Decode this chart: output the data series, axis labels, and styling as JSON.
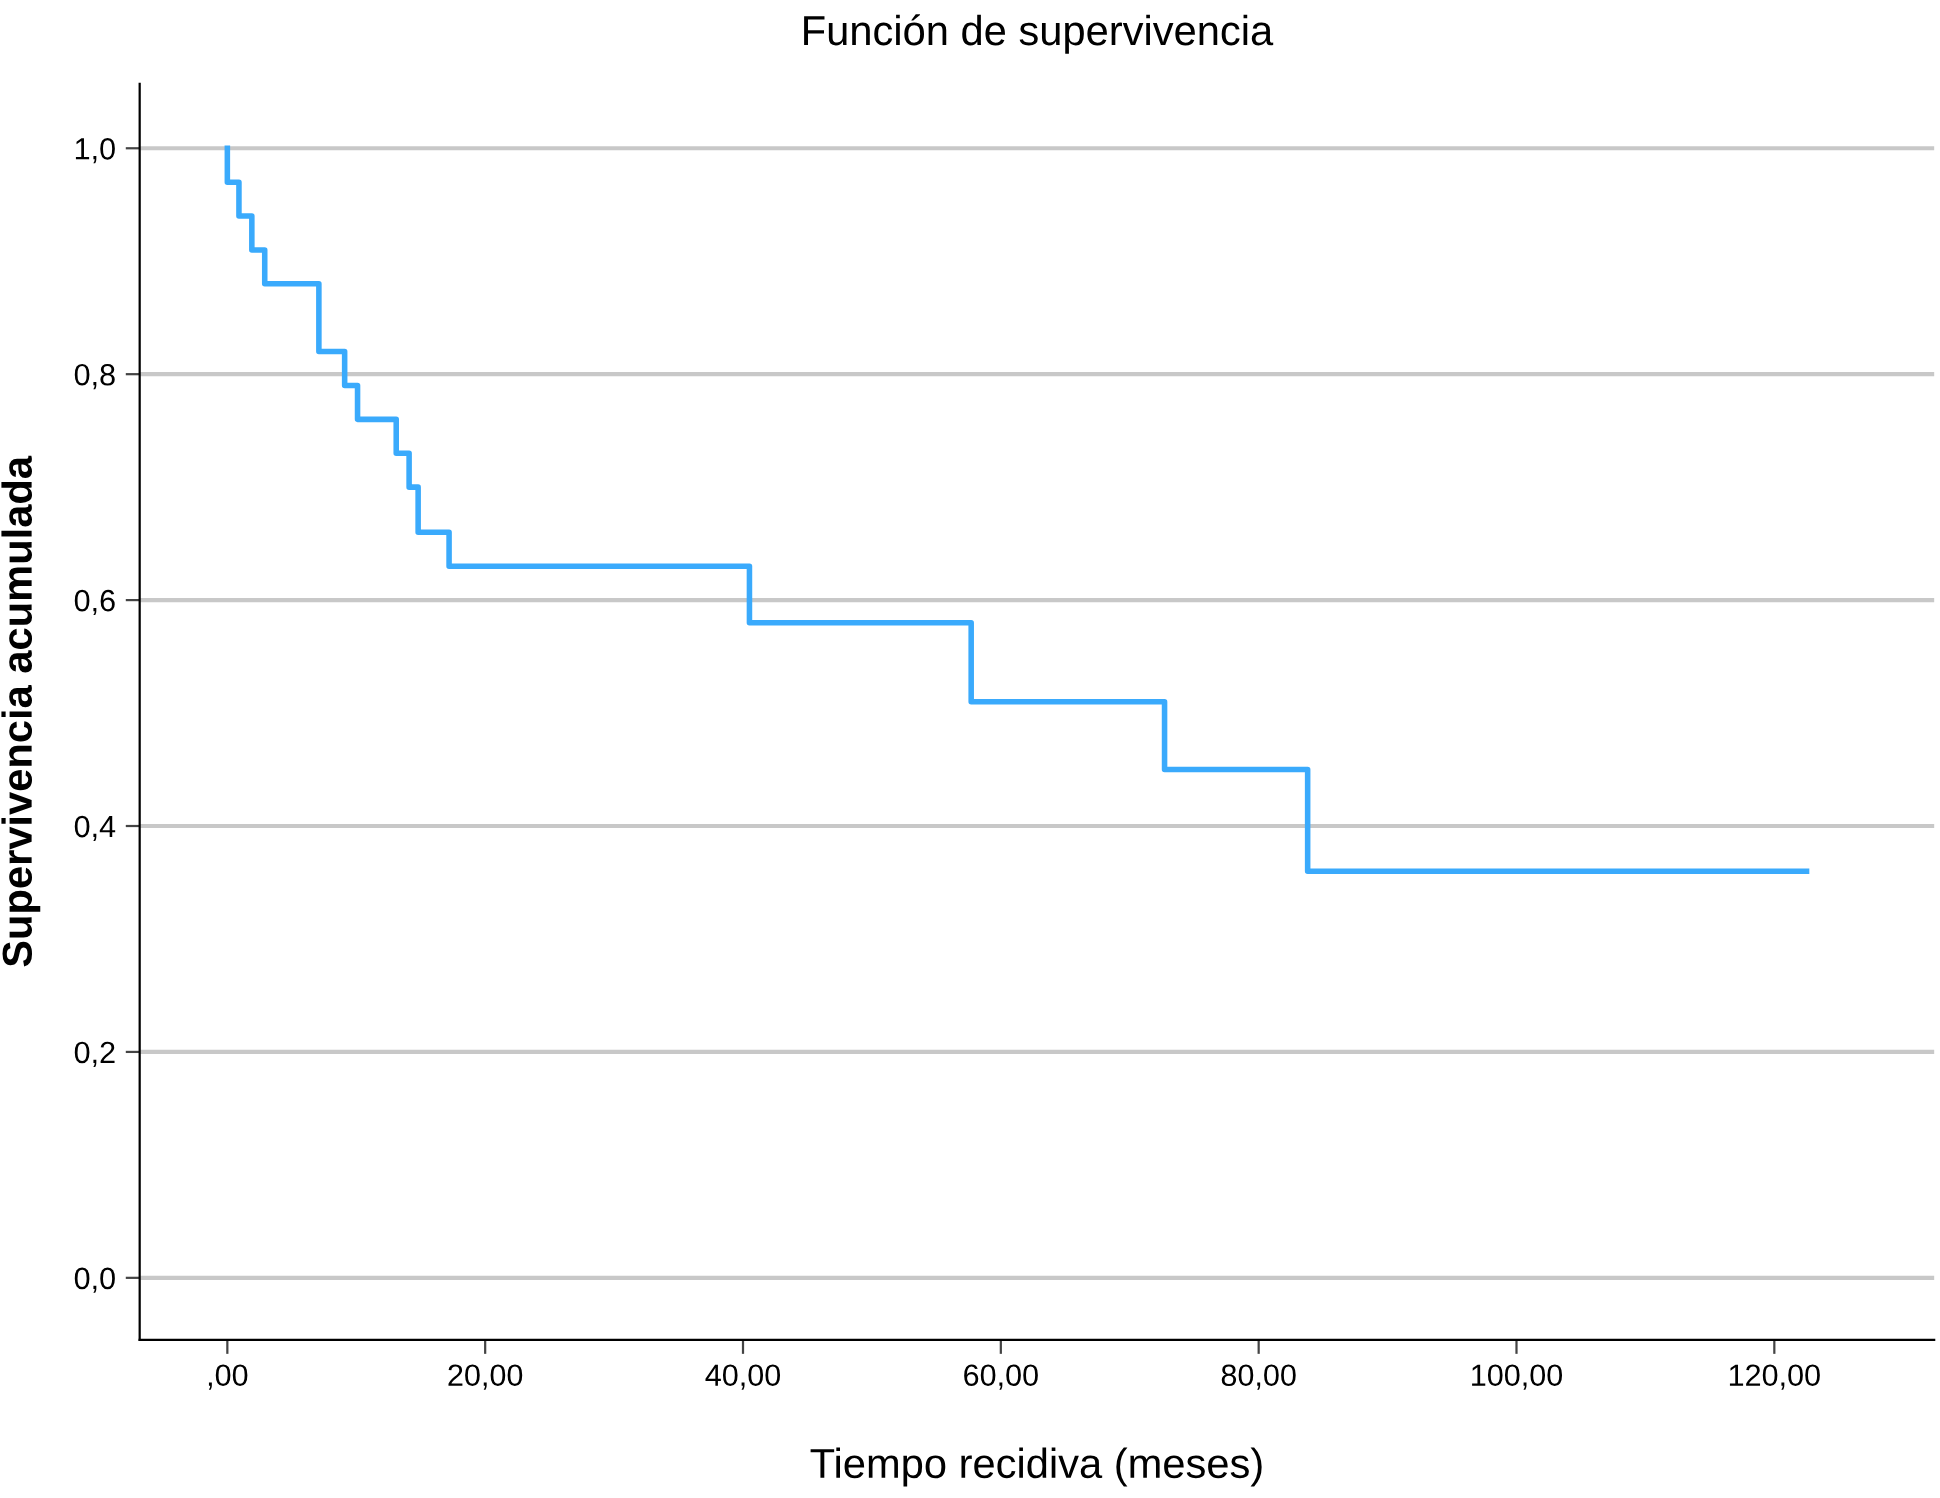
{
  "chart_data": {
    "type": "step",
    "title": "Función de supervivencia",
    "xlabel": "Tiempo recidiva (meses)",
    "ylabel": "Supervivencia acumulada",
    "x": [
      0,
      0,
      0.9,
      1.9,
      2.9,
      7.1,
      9.1,
      10.1,
      13.1,
      14.1,
      14.8,
      17.2,
      40.5,
      57.7,
      72.7,
      83.8,
      122.5
    ],
    "series": [
      {
        "color": "#3aaafc",
        "values": [
          1.0,
          0.97,
          0.94,
          0.91,
          0.88,
          0.82,
          0.79,
          0.76,
          0.73,
          0.7,
          0.66,
          0.63,
          0.58,
          0.51,
          0.45,
          0.36,
          0.36
        ]
      }
    ],
    "xlim": [
      -6.8,
      132.4
    ],
    "ylim": [
      -0.055,
      1.057
    ],
    "xticks": [
      {
        "value": 0,
        "label": ",00"
      },
      {
        "value": 20,
        "label": "20,00"
      },
      {
        "value": 40,
        "label": "40,00"
      },
      {
        "value": 60,
        "label": "60,00"
      },
      {
        "value": 80,
        "label": "80,00"
      },
      {
        "value": 100,
        "label": "100,00"
      },
      {
        "value": 120,
        "label": "120,00"
      }
    ],
    "yticks": [
      {
        "value": 0,
        "label": "0,0"
      },
      {
        "value": 0.2,
        "label": "0,2"
      },
      {
        "value": 0.4,
        "label": "0,4"
      },
      {
        "value": 0.6,
        "label": "0,6"
      },
      {
        "value": 0.8,
        "label": "0,8"
      },
      {
        "value": 1.0,
        "label": "1,0"
      }
    ],
    "grid": "y",
    "legend": false
  }
}
